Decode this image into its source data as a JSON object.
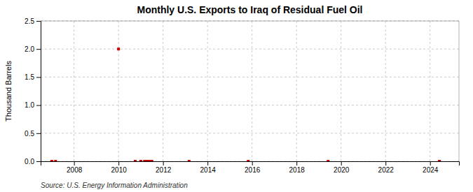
{
  "chart_data": {
    "type": "scatter",
    "title": "Monthly U.S. Exports to Iraq of Residual Fuel Oil",
    "y_label": "Thousand Barrels",
    "source": "Source: U.S. Energy Information Administration",
    "x": [
      2007.0,
      2007.17,
      2010.0,
      2010.75,
      2011.0,
      2011.17,
      2011.25,
      2011.33,
      2011.42,
      2011.5,
      2013.17,
      2015.83,
      2019.42,
      2024.42
    ],
    "values": [
      0.0,
      0.0,
      2.0,
      0.0,
      0.0,
      0.0,
      0.0,
      0.0,
      0.0,
      0.0,
      0.0,
      0.0,
      0.0,
      0.0
    ],
    "color": "#cc0000",
    "marker": "square",
    "xlim": [
      2006.5,
      2025.3
    ],
    "ylim": [
      0.0,
      2.5
    ],
    "xticks": [
      2008,
      2010,
      2012,
      2014,
      2016,
      2018,
      2020,
      2022,
      2024
    ],
    "yticks": [
      {
        "value": 0.0,
        "label": "0.0"
      },
      0.5,
      {
        "value": 1.0,
        "label": "1.0"
      },
      1.5,
      {
        "value": 2.0,
        "label": "2.0"
      },
      2.5
    ],
    "grid": true
  }
}
